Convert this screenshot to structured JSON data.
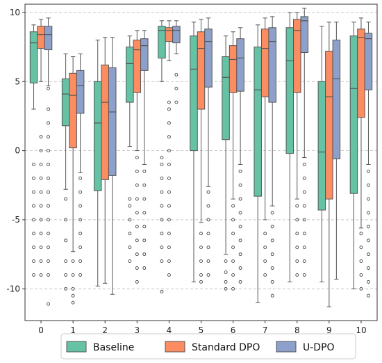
{
  "chart_data": {
    "type": "boxplot",
    "title": "",
    "xlabel": "",
    "ylabel": "",
    "ylim": [
      -12.3,
      10.6
    ],
    "yticks": [
      10,
      5,
      0,
      -5,
      -10
    ],
    "grid": "horizontal dashed",
    "legend_position": "bottom-center",
    "categories": [
      "0",
      "1",
      "2",
      "3",
      "4",
      "5",
      "6",
      "7",
      "8",
      "9",
      "10"
    ],
    "series": [
      {
        "name": "Baseline",
        "color": "#66c2a5",
        "boxes": [
          {
            "whislo": 3.0,
            "q1": 4.9,
            "med": 7.8,
            "q3": 8.6,
            "whishi": 9.1,
            "fliers": [
              -1.0,
              -2.0,
              -3.0,
              -4.0,
              -5.0,
              -6.0,
              -7.0,
              -8.0,
              -9.0
            ]
          },
          {
            "whislo": -2.8,
            "q1": 1.8,
            "med": 4.1,
            "q3": 5.2,
            "whishi": 7.0,
            "fliers": [
              -3.5,
              -5.0,
              -6.5,
              -8.0,
              -9.0,
              -10.0
            ]
          },
          {
            "whislo": -9.8,
            "q1": -2.9,
            "med": 2.0,
            "q3": 5.0,
            "whishi": 8.0,
            "fliers": []
          },
          {
            "whislo": 0.3,
            "q1": 3.5,
            "med": 6.3,
            "q3": 7.5,
            "whishi": 8.3,
            "fliers": [
              -3.5,
              -4.0,
              -5.0,
              -6.0,
              -7.0,
              -8.0
            ]
          },
          {
            "whislo": 5.0,
            "q1": 6.7,
            "med": 8.7,
            "q3": 9.0,
            "whishi": 9.4,
            "fliers": [
              -0.5,
              -1.0,
              -2.0,
              -3.0,
              -4.0,
              -5.0,
              -6.0,
              -7.0,
              -8.0,
              -10.2
            ]
          },
          {
            "whislo": -9.5,
            "q1": 0.0,
            "med": 5.9,
            "q3": 8.3,
            "whishi": 9.3,
            "fliers": []
          },
          {
            "whislo": -7.5,
            "q1": 0.8,
            "med": 5.3,
            "q3": 6.8,
            "whishi": 8.3,
            "fliers": [
              -8.0,
              -8.8,
              -9.5,
              -10.0
            ]
          },
          {
            "whislo": -11.0,
            "q1": -3.3,
            "med": 4.4,
            "q3": 7.5,
            "whishi": 9.1,
            "fliers": []
          },
          {
            "whislo": -9.5,
            "q1": -0.2,
            "med": 6.5,
            "q3": 8.9,
            "whishi": 10.0,
            "fliers": []
          },
          {
            "whislo": -9.5,
            "q1": -4.3,
            "med": -0.1,
            "q3": 5.0,
            "whishi": 9.0,
            "fliers": []
          },
          {
            "whislo": -10.0,
            "q1": -3.1,
            "med": 4.5,
            "q3": 8.3,
            "whishi": 9.3,
            "fliers": []
          }
        ]
      },
      {
        "name": "Standard DPO",
        "color": "#fc8d62",
        "boxes": [
          {
            "whislo": 5.0,
            "q1": 7.4,
            "med": 8.4,
            "q3": 9.0,
            "whishi": 9.5,
            "fliers": [
              1.0,
              0.0,
              -1.0,
              -2.0,
              -3.0,
              -4.0,
              -5.0,
              -6.0,
              -7.0,
              -8.0,
              -9.0
            ]
          },
          {
            "whislo": -7.3,
            "q1": 0.2,
            "med": 4.0,
            "q3": 5.6,
            "whishi": 6.8,
            "fliers": [
              -8.0,
              -9.0,
              -10.0,
              -10.5,
              -11.0
            ]
          },
          {
            "whislo": -9.6,
            "q1": -2.1,
            "med": 3.5,
            "q3": 6.2,
            "whishi": 8.2,
            "fliers": []
          },
          {
            "whislo": 0.0,
            "q1": 4.2,
            "med": 7.3,
            "q3": 8.0,
            "whishi": 8.7,
            "fliers": [
              -0.5,
              -1.5,
              -2.5,
              -3.5,
              -4.5,
              -5.5,
              -6.5,
              -7.5,
              -8.5,
              -9.5
            ]
          },
          {
            "whislo": 6.5,
            "q1": 7.9,
            "med": 8.7,
            "q3": 8.9,
            "whishi": 9.4,
            "fliers": [
              3.5,
              3.0,
              2.0,
              1.0,
              0.0,
              -1.0,
              -2.0,
              -3.0,
              -4.0,
              -5.0,
              -6.0,
              -7.0,
              -8.0,
              -9.0
            ]
          },
          {
            "whislo": -5.2,
            "q1": 3.0,
            "med": 7.4,
            "q3": 8.6,
            "whishi": 9.5,
            "fliers": [
              -6.0,
              -7.0,
              -8.0,
              -9.0,
              -9.5
            ]
          },
          {
            "whislo": -3.5,
            "q1": 4.2,
            "med": 6.6,
            "q3": 7.6,
            "whishi": 8.6,
            "fliers": [
              -4.0,
              -5.0,
              -6.0,
              -7.0,
              -8.0,
              -9.0,
              -10.0
            ]
          },
          {
            "whislo": -5.0,
            "q1": 3.9,
            "med": 7.4,
            "q3": 8.8,
            "whishi": 9.6,
            "fliers": [
              -6.0,
              -7.0,
              -8.0,
              -9.0
            ]
          },
          {
            "whislo": -3.5,
            "q1": 4.2,
            "med": 8.7,
            "q3": 9.5,
            "whishi": 10.0,
            "fliers": [
              -4.0,
              -5.0,
              -6.0,
              -7.0,
              -8.0,
              -9.0
            ]
          },
          {
            "whislo": -11.3,
            "q1": -3.5,
            "med": 3.9,
            "q3": 7.2,
            "whishi": 9.3,
            "fliers": []
          },
          {
            "whislo": -5.6,
            "q1": 2.4,
            "med": 8.2,
            "q3": 8.8,
            "whishi": 9.6,
            "fliers": [
              -6.0,
              -7.0,
              -8.0,
              -9.0,
              -10.0
            ]
          }
        ]
      },
      {
        "name": "U-DPO",
        "color": "#8da0cb",
        "boxes": [
          {
            "whislo": 4.7,
            "q1": 7.3,
            "med": 8.4,
            "q3": 9.0,
            "whishi": 9.6,
            "fliers": [
              4.5,
              3.0,
              2.0,
              1.0,
              0.0,
              -1.0,
              -2.0,
              -3.0,
              -4.0,
              -5.0,
              -6.0,
              -7.0,
              -8.0,
              -9.0,
              -11.1
            ]
          },
          {
            "whislo": -1.6,
            "q1": 2.7,
            "med": 4.7,
            "q3": 5.8,
            "whishi": 7.0,
            "fliers": [
              -2.0,
              -3.0,
              -4.0,
              -5.0,
              -6.0,
              -7.0,
              -8.0,
              -9.0
            ]
          },
          {
            "whislo": -10.4,
            "q1": -1.8,
            "med": 2.8,
            "q3": 6.0,
            "whishi": 8.2,
            "fliers": []
          },
          {
            "whislo": -1.0,
            "q1": 5.8,
            "med": 7.6,
            "q3": 8.1,
            "whishi": 8.7,
            "fliers": [
              -1.5,
              -2.5,
              -3.5,
              -4.5,
              -5.5,
              -6.5,
              -7.5,
              -8.5
            ]
          },
          {
            "whislo": 7.0,
            "q1": 7.8,
            "med": 8.7,
            "q3": 9.0,
            "whishi": 9.4,
            "fliers": [
              5.5,
              4.5,
              3.5
            ]
          },
          {
            "whislo": -2.6,
            "q1": 4.6,
            "med": 7.9,
            "q3": 8.8,
            "whishi": 9.6,
            "fliers": [
              -3.0,
              -4.0,
              -5.0,
              -6.0,
              -7.0,
              -8.0,
              -9.0
            ]
          },
          {
            "whislo": -1.0,
            "q1": 4.3,
            "med": 6.7,
            "q3": 8.1,
            "whishi": 8.9,
            "fliers": [
              -1.5,
              -2.5,
              -3.5,
              -4.5,
              -5.5,
              -6.5,
              -7.5,
              -8.5,
              -9.5
            ]
          },
          {
            "whislo": -4.0,
            "q1": 3.5,
            "med": 7.9,
            "q3": 8.9,
            "whishi": 9.7,
            "fliers": [
              -4.5,
              -5.5,
              -6.5,
              -7.5,
              -8.5,
              -9.5,
              -10.5
            ]
          },
          {
            "whislo": -0.5,
            "q1": 7.1,
            "med": 9.4,
            "q3": 9.7,
            "whishi": 10.3,
            "fliers": [
              -1.0,
              -2.0,
              -3.0,
              -4.0,
              -5.0,
              -6.0,
              -7.0,
              -8.0,
              -9.0
            ]
          },
          {
            "whislo": -9.3,
            "q1": -0.6,
            "med": 5.2,
            "q3": 8.0,
            "whishi": 9.3,
            "fliers": []
          },
          {
            "whislo": -1.0,
            "q1": 4.4,
            "med": 8.1,
            "q3": 8.5,
            "whishi": 9.3,
            "fliers": [
              -1.5,
              -2.5,
              -3.5,
              -4.5,
              -5.5,
              -6.5,
              -7.5,
              -8.5,
              -9.5,
              -10.5
            ]
          }
        ]
      }
    ]
  }
}
